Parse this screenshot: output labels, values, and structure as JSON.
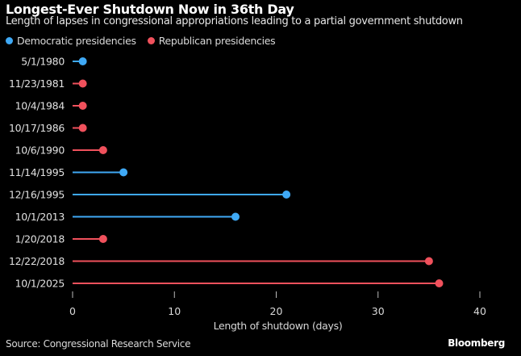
{
  "chart_data": {
    "type": "lollipop",
    "title": "Longest-Ever Shutdown Now in 36th Day",
    "subtitle": "Length of lapses in congressional appropriations leading to a partial government shutdown",
    "xlabel": "Length of shutdown (days)",
    "ylabel": "",
    "xlim": [
      0,
      40
    ],
    "xticks": [
      0,
      10,
      20,
      30,
      40
    ],
    "grid": false,
    "legend_position": "top-left",
    "legend": [
      {
        "name": "Democratic presidencies",
        "color": "#3fa9f5"
      },
      {
        "name": "Republican presidencies",
        "color": "#f0515c"
      }
    ],
    "categories": [
      "5/1/1980",
      "11/23/1981",
      "10/4/1984",
      "10/17/1986",
      "10/6/1990",
      "11/14/1995",
      "12/16/1995",
      "10/1/2013",
      "1/20/2018",
      "12/22/2018",
      "10/1/2025"
    ],
    "values": [
      1,
      1,
      1,
      1,
      3,
      5,
      21,
      16,
      3,
      35,
      36
    ],
    "party": [
      "Democratic",
      "Republican",
      "Republican",
      "Republican",
      "Republican",
      "Democratic",
      "Democratic",
      "Democratic",
      "Republican",
      "Republican",
      "Republican"
    ]
  },
  "footer": {
    "source": "Source: Congressional Research Service",
    "brand": "Bloomberg"
  }
}
